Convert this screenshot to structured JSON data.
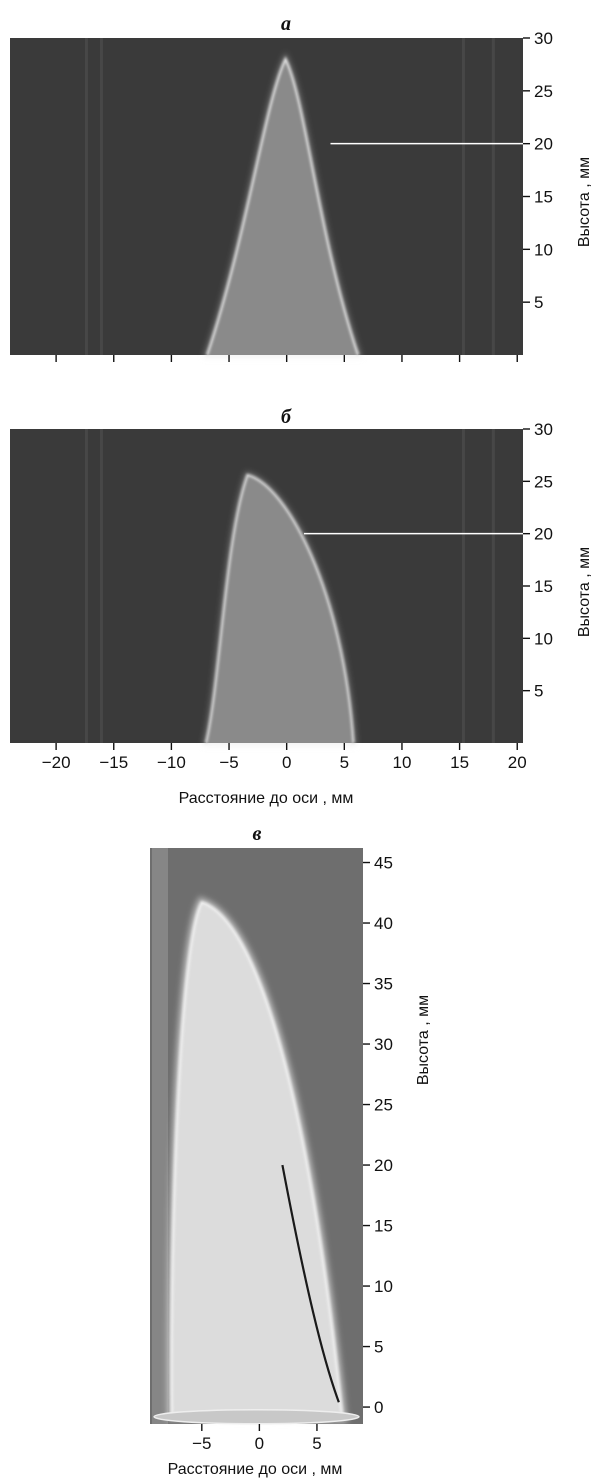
{
  "chart_data": [
    {
      "type": "image",
      "panel_label": "а",
      "ylabel": "Высота , мм",
      "x_range": [
        -24,
        20.5
      ],
      "y_range": [
        0,
        30
      ],
      "y_ticks": [
        5,
        10,
        15,
        20,
        25,
        30
      ],
      "x_ticks": [
        -20,
        -15,
        -10,
        -5,
        0,
        5,
        10,
        15,
        20
      ],
      "x_tick_labels_shown": false,
      "reference_line": {
        "y": 20,
        "x_start": 3.8,
        "x_end": 20.5,
        "color": "#ffffff"
      },
      "flame_profile": {
        "base_left": -6.9,
        "base_right": 6.2,
        "apex_x": -0.1,
        "apex_y": 28
      },
      "colors": {
        "background": "#3a3a3a",
        "flame_fill": "#8a8a8a",
        "flame_edge": "#dcdcdc"
      }
    },
    {
      "type": "image",
      "panel_label": "б",
      "ylabel": "Высота , мм",
      "xlabel": "Расстояние до оси , мм",
      "x_range": [
        -24,
        20.5
      ],
      "y_range": [
        0,
        30
      ],
      "y_ticks": [
        5,
        10,
        15,
        20,
        25,
        30
      ],
      "x_ticks": [
        -20,
        -15,
        -10,
        -5,
        0,
        5,
        10,
        15,
        20
      ],
      "x_tick_labels_shown": true,
      "reference_line": {
        "y": 20,
        "x_start": 1.5,
        "x_end": 20.5,
        "color": "#ffffff"
      },
      "flame_profile": {
        "base_left": -7.0,
        "base_right": 5.8,
        "apex_x": -3.4,
        "apex_y": 25.6
      },
      "colors": {
        "background": "#3a3a3a",
        "flame_fill": "#8a8a8a",
        "flame_edge": "#d6d6d6"
      }
    },
    {
      "type": "image",
      "panel_label": "в",
      "ylabel": "Высота , мм",
      "xlabel": "Расстояние до оси , мм",
      "x_range": [
        -9.5,
        9.0
      ],
      "y_range": [
        -1.4,
        46.2
      ],
      "y_ticks": [
        0,
        5,
        10,
        15,
        20,
        25,
        30,
        35,
        40,
        45
      ],
      "x_ticks": [
        -5,
        0,
        5
      ],
      "x_tick_labels_shown": true,
      "flame_profile": {
        "base_left": -7.6,
        "base_right": 7.2,
        "apex_x": -5.0,
        "apex_y": 41.7
      },
      "colors": {
        "background": "#6e6e6e",
        "flame_fill": "#dcdcdc",
        "flame_edge": "#f0f0f0",
        "dark_edge": "#1a1a1a"
      }
    }
  ]
}
